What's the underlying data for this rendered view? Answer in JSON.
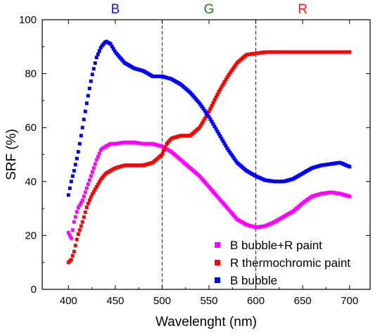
{
  "chart_data": {
    "type": "scatter",
    "xlabel": "Wavelenght (nm)",
    "ylabel": "SRF (%)",
    "xlim": [
      372,
      722
    ],
    "ylim": [
      0,
      100
    ],
    "x_ticks": [
      400,
      450,
      500,
      550,
      600,
      650,
      700
    ],
    "y_ticks": [
      0,
      20,
      40,
      60,
      80,
      100
    ],
    "grid": false,
    "legend_position": "bottom-right",
    "band_dividers": [
      500,
      600
    ],
    "band_labels": [
      {
        "text": "B",
        "x": 450,
        "color": "#1a1aff"
      },
      {
        "text": "G",
        "x": 550,
        "color": "#1a8a1a"
      },
      {
        "text": "R",
        "x": 650,
        "color": "#ff1a1a"
      }
    ],
    "series": [
      {
        "name": "B bubble+R paint",
        "color": "#ff00ff",
        "marker": "square",
        "points": [
          [
            400,
            21
          ],
          [
            403,
            19
          ],
          [
            406,
            25
          ],
          [
            410,
            30
          ],
          [
            415,
            33
          ],
          [
            420,
            38
          ],
          [
            425,
            43
          ],
          [
            430,
            48
          ],
          [
            435,
            52
          ],
          [
            440,
            53
          ],
          [
            445,
            54
          ],
          [
            450,
            54
          ],
          [
            460,
            54.5
          ],
          [
            470,
            54.5
          ],
          [
            480,
            54
          ],
          [
            490,
            54
          ],
          [
            500,
            53
          ],
          [
            510,
            51
          ],
          [
            520,
            48
          ],
          [
            530,
            45
          ],
          [
            540,
            42
          ],
          [
            550,
            38
          ],
          [
            560,
            34
          ],
          [
            570,
            30
          ],
          [
            580,
            26
          ],
          [
            590,
            24
          ],
          [
            600,
            23
          ],
          [
            610,
            23.5
          ],
          [
            620,
            25
          ],
          [
            630,
            27
          ],
          [
            640,
            29
          ],
          [
            650,
            32
          ],
          [
            660,
            34.5
          ],
          [
            670,
            35.5
          ],
          [
            680,
            36
          ],
          [
            690,
            35.5
          ],
          [
            700,
            34.5
          ]
        ]
      },
      {
        "name": "R thermochromic paint",
        "color": "#ff0000",
        "marker": "square",
        "points": [
          [
            400,
            10
          ],
          [
            403,
            11
          ],
          [
            406,
            14
          ],
          [
            410,
            20
          ],
          [
            415,
            25
          ],
          [
            420,
            31
          ],
          [
            425,
            35
          ],
          [
            430,
            38
          ],
          [
            435,
            41
          ],
          [
            440,
            43
          ],
          [
            450,
            45
          ],
          [
            460,
            46
          ],
          [
            470,
            46
          ],
          [
            480,
            46
          ],
          [
            490,
            47
          ],
          [
            500,
            50
          ],
          [
            505,
            54
          ],
          [
            510,
            56
          ],
          [
            520,
            57
          ],
          [
            530,
            57
          ],
          [
            540,
            60
          ],
          [
            550,
            66
          ],
          [
            560,
            73
          ],
          [
            570,
            79
          ],
          [
            580,
            84
          ],
          [
            590,
            87
          ],
          [
            600,
            87.5
          ],
          [
            610,
            88
          ],
          [
            620,
            88
          ],
          [
            630,
            88
          ],
          [
            640,
            88
          ],
          [
            650,
            88
          ],
          [
            660,
            88
          ],
          [
            670,
            88
          ],
          [
            680,
            88
          ],
          [
            690,
            88
          ],
          [
            700,
            88
          ]
        ]
      },
      {
        "name": "B bubble",
        "color": "#0000ff",
        "marker": "square",
        "points": [
          [
            400,
            35
          ],
          [
            403,
            40
          ],
          [
            406,
            44
          ],
          [
            410,
            50
          ],
          [
            415,
            60
          ],
          [
            420,
            70
          ],
          [
            425,
            79
          ],
          [
            430,
            86
          ],
          [
            435,
            90
          ],
          [
            440,
            92
          ],
          [
            445,
            91
          ],
          [
            450,
            88
          ],
          [
            460,
            84
          ],
          [
            470,
            82
          ],
          [
            480,
            81
          ],
          [
            490,
            79
          ],
          [
            500,
            79
          ],
          [
            510,
            78
          ],
          [
            520,
            76
          ],
          [
            530,
            73
          ],
          [
            540,
            69
          ],
          [
            550,
            64
          ],
          [
            560,
            58
          ],
          [
            570,
            52
          ],
          [
            580,
            47
          ],
          [
            590,
            44
          ],
          [
            600,
            42
          ],
          [
            610,
            40.5
          ],
          [
            620,
            40
          ],
          [
            630,
            40
          ],
          [
            640,
            41
          ],
          [
            650,
            43
          ],
          [
            660,
            45
          ],
          [
            670,
            46
          ],
          [
            680,
            46.5
          ],
          [
            690,
            47
          ],
          [
            700,
            45.5
          ]
        ]
      }
    ]
  }
}
